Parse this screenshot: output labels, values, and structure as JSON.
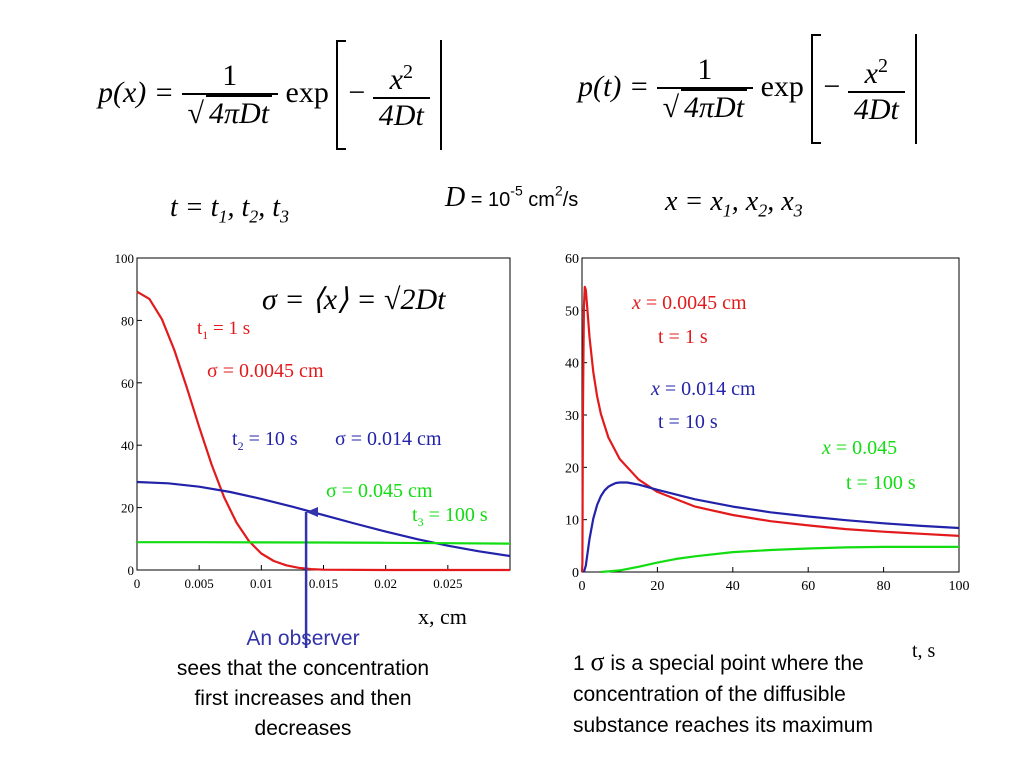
{
  "equations": {
    "px_lhs": "p(x) = ",
    "pt_lhs": "p(t) = ",
    "one": "1",
    "sqrt_body": "4πDt",
    "exp": "exp",
    "minus": "−",
    "x_sq": "x",
    "sq": "2",
    "four_dt": "4Dt"
  },
  "params": {
    "t_line": [
      "t = t",
      "1",
      ", t",
      "2",
      ", t",
      "3"
    ],
    "D_symbol": "D",
    "D_eq": " = 10",
    "D_exp": "-5",
    "D_unit1": " cm",
    "D_unit_exp": "2",
    "D_unit2": "/s",
    "x_line": [
      "x = x",
      "1",
      ", x",
      "2",
      ", x",
      "3"
    ]
  },
  "colors": {
    "red": "#e31a1c",
    "blue": "#2222aa",
    "green": "#11dd11",
    "arrow": "#3333aa",
    "note_blue": "#3333aa"
  },
  "chart_data": [
    {
      "type": "line",
      "xlim": [
        0,
        0.03
      ],
      "ylim": [
        0,
        100
      ],
      "xticks": [
        0,
        0.005,
        0.01,
        0.015,
        0.02,
        0.025
      ],
      "xtick_labels": [
        "0",
        "0.005",
        "0.01",
        "0.015",
        "0.02",
        "0.025"
      ],
      "yticks": [
        0,
        20,
        40,
        60,
        80,
        100
      ],
      "ytick_labels": [
        "0",
        "20",
        "40",
        "60",
        "80",
        "100"
      ],
      "xlabel": "x, cm",
      "formula": "σ = ⟨x⟩ = √2Dt",
      "series": [
        {
          "color": "red",
          "x": [
            0,
            0.001,
            0.002,
            0.003,
            0.004,
            0.005,
            0.006,
            0.007,
            0.008,
            0.009,
            0.01,
            0.011,
            0.012,
            0.013,
            0.014,
            0.015,
            0.02,
            0.025,
            0.03
          ],
          "y": [
            89.2,
            86.9,
            80.4,
            70.5,
            58.6,
            45.8,
            33.8,
            23.4,
            15.2,
            9.3,
            5.3,
            2.9,
            1.5,
            0.7,
            0.3,
            0.1,
            0,
            0,
            0
          ]
        },
        {
          "color": "blue",
          "x": [
            0,
            0.0025,
            0.005,
            0.0075,
            0.01,
            0.0125,
            0.015,
            0.0175,
            0.02,
            0.0225,
            0.025,
            0.0275,
            0.03
          ],
          "y": [
            28.2,
            27.8,
            26.7,
            25.0,
            22.8,
            20.3,
            17.6,
            14.9,
            12.3,
            9.9,
            7.8,
            6.0,
            4.5
          ]
        },
        {
          "color": "green",
          "x": [
            0,
            0.005,
            0.01,
            0.015,
            0.02,
            0.025,
            0.03
          ],
          "y": [
            8.92,
            8.9,
            8.86,
            8.8,
            8.71,
            8.6,
            8.47
          ]
        }
      ],
      "annotations": {
        "t1": "t",
        "t1_sub": "1",
        "t1_val": " = 1 s",
        "sigma1": "σ = 0.0045 cm",
        "t2": "t",
        "t2_sub": "2",
        "t2_val": " = 10 s",
        "sigma2": "σ = 0.014 cm",
        "sigma3": "σ = 0.045 cm",
        "t3": "t",
        "t3_sub": "3",
        "t3_val": " = 100 s"
      },
      "observer_x": 0.0136
    },
    {
      "type": "line",
      "xlim": [
        0,
        100
      ],
      "ylim": [
        0,
        60
      ],
      "xticks": [
        0,
        20,
        40,
        60,
        80,
        100
      ],
      "xtick_labels": [
        "0",
        "20",
        "40",
        "60",
        "80",
        "100"
      ],
      "yticks": [
        0,
        10,
        20,
        30,
        40,
        50,
        60
      ],
      "ytick_labels": [
        "0",
        "10",
        "20",
        "30",
        "40",
        "50",
        "60"
      ],
      "xlabel": "t, s",
      "series": [
        {
          "color": "red",
          "x": [
            0.01,
            0.1,
            0.25,
            0.5,
            0.75,
            1,
            1.5,
            2,
            3,
            4,
            5,
            7,
            10,
            15,
            20,
            30,
            40,
            50,
            60,
            70,
            80,
            90,
            100
          ],
          "y": [
            0,
            1.7,
            29.7,
            50.6,
            54.5,
            53.9,
            49.4,
            44.9,
            38.2,
            33.6,
            30.2,
            25.7,
            21.6,
            17.7,
            15.3,
            12.5,
            10.9,
            9.7,
            8.9,
            8.2,
            7.7,
            7.3,
            6.9
          ]
        },
        {
          "color": "blue",
          "x": [
            0.5,
            1,
            2,
            3,
            4,
            5,
            6,
            7,
            8,
            9,
            10,
            12,
            15,
            20,
            30,
            40,
            50,
            60,
            70,
            80,
            90,
            100
          ],
          "y": [
            0,
            1.2,
            6.3,
            10.2,
            12.8,
            14.5,
            15.6,
            16.3,
            16.7,
            17.0,
            17.1,
            17.1,
            16.7,
            15.7,
            13.9,
            12.5,
            11.4,
            10.6,
            9.9,
            9.3,
            8.8,
            8.4
          ]
        },
        {
          "color": "green",
          "x": [
            5,
            10,
            15,
            20,
            25,
            30,
            40,
            50,
            60,
            70,
            80,
            90,
            100
          ],
          "y": [
            0,
            0.3,
            1.0,
            1.8,
            2.5,
            3.0,
            3.8,
            4.2,
            4.5,
            4.7,
            4.8,
            4.8,
            4.8
          ]
        }
      ],
      "annotations": {
        "x1": "x",
        "x1_val": " = 0.0045 cm",
        "t1": "t = 1 s",
        "x2": "x",
        "x2_val": " = 0.014 cm",
        "t2": "t = 10 s",
        "x3": "x",
        "x3_val": " = 0.045",
        "t3": "t = 100 s"
      }
    }
  ],
  "notes": {
    "observer_title": "An observer",
    "observer_body": [
      "sees that the concentration",
      "first increases and then",
      "decreases"
    ],
    "sigma_prefix": "1 ",
    "sigma_symbol": "σ",
    "sigma_body": [
      " is a special point where the",
      "concentration of the diffusible",
      "substance reaches its maximum"
    ]
  }
}
